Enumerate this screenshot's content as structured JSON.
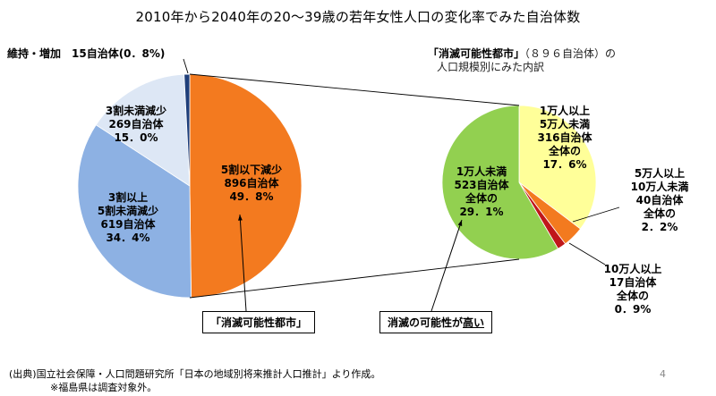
{
  "title": "2010年から2040年の20～39歳の若年女性人口の変化率でみた自治体数",
  "left_chart": {
    "header_label": "維持・増加　15自治体(0．8%)",
    "slice_labels": [
      {
        "line1": "5割以下減少",
        "line2": "896自治体",
        "line3": "49．8%"
      },
      {
        "line1": "3割以上",
        "line2": "5割未満減少",
        "line3": "619自治体",
        "line4": "34．4%"
      },
      {
        "line1": "3割未満減少",
        "line2": "269自治体",
        "line3": "15．0%"
      }
    ],
    "box_label": "「消滅可能性都市」"
  },
  "right_chart": {
    "header_title": "「消滅可能性都市」",
    "header_count": "（８９６自治体）の",
    "header_line2": "人口規模別にみた内訳",
    "slice_labels": [
      {
        "line1": "1万人以上",
        "line2": "5万人未満",
        "line3": "316自治体",
        "line4": "全体の",
        "line5": "17．6%"
      },
      {
        "line1": "5万人以上",
        "line2": "10万人未満",
        "line3": "40自治体",
        "line4": "全体の",
        "line5": "2．2%"
      },
      {
        "line1": "10万人以上",
        "line2": "17自治体",
        "line3": "全体の",
        "line4": "0．9%"
      },
      {
        "line1": "1万人未満",
        "line2": "523自治体",
        "line3": "全体の",
        "line4": "29．1%"
      }
    ],
    "box_label_prefix": "消滅の可能性が",
    "box_label_emph": "高い"
  },
  "footnote_line1": "(出典)国立社会保障・人口問題研究所「日本の地域別将来推計人口推計」より作成。",
  "footnote_line2": "※福島県は調査対象外。",
  "page_number": "4",
  "colors": {
    "orange": "#f37a1f",
    "blue": "#8db1e3",
    "light_blue": "#dde7f5",
    "navy": "#1f3f7a",
    "green": "#92d050",
    "yellow": "#ffff99",
    "red": "#c0171b"
  },
  "chart_data": [
    {
      "type": "pie",
      "title": "",
      "slices": [
        {
          "label": "維持・増加",
          "count": 15,
          "value": 0.8,
          "color": "#1f3f7a"
        },
        {
          "label": "5割以下減少",
          "count": 896,
          "value": 49.8,
          "color": "#f37a1f"
        },
        {
          "label": "3割以上5割未満減少",
          "count": 619,
          "value": 34.4,
          "color": "#8db1e3"
        },
        {
          "label": "3割未満減少",
          "count": 269,
          "value": 15.0,
          "color": "#dde7f5"
        }
      ]
    },
    {
      "type": "pie",
      "title": "",
      "slices": [
        {
          "label": "1万人以上5万人未満",
          "count": 316,
          "value": 17.6,
          "color": "#ffff99"
        },
        {
          "label": "5万人以上10万人未満",
          "count": 40,
          "value": 2.2,
          "color": "#f37a1f"
        },
        {
          "label": "10万人以上",
          "count": 17,
          "value": 0.9,
          "color": "#c0171b"
        },
        {
          "label": "1万人未満",
          "count": 523,
          "value": 29.1,
          "color": "#92d050"
        }
      ]
    }
  ]
}
